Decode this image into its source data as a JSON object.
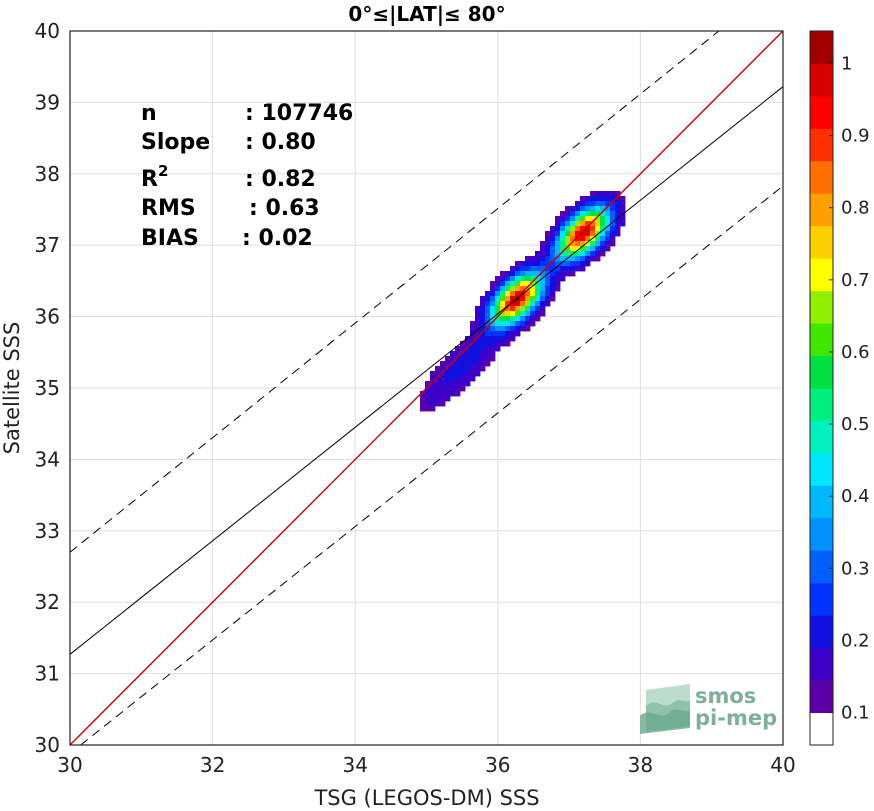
{
  "chart_data": {
    "type": "heatmap",
    "title": "0°≤|LAT|≤ 80°",
    "xlabel": "TSG (LEGOS-DM) SSS",
    "ylabel": "Satellite SSS",
    "xlim": [
      30,
      40
    ],
    "ylim": [
      30,
      40
    ],
    "xticks": [
      "30",
      "32",
      "34",
      "36",
      "38",
      "40"
    ],
    "yticks": [
      "30",
      "31",
      "32",
      "33",
      "34",
      "35",
      "36",
      "37",
      "38",
      "39",
      "40"
    ],
    "grid": true,
    "stats": [
      {
        "label": "n",
        "value": ": 107746"
      },
      {
        "label": "Slope",
        "value": ": 0.80"
      },
      {
        "label": "R",
        "sup": "2",
        "value": ": 0.82"
      },
      {
        "label": "RMS",
        "value": ": 0.63"
      },
      {
        "label": "BIAS",
        "value": ": 0.02"
      }
    ],
    "lines": [
      {
        "role": "one-to-one",
        "color": "#cc0000",
        "style": "solid",
        "points": [
          [
            30,
            30
          ],
          [
            40,
            40
          ]
        ]
      },
      {
        "role": "regression",
        "color": "#000000",
        "style": "solid",
        "points": [
          [
            30,
            31.27
          ],
          [
            40,
            39.22
          ]
        ]
      },
      {
        "role": "upper-bound",
        "color": "#000000",
        "style": "dashed",
        "points": [
          [
            30,
            32.7
          ],
          [
            39.1,
            40
          ]
        ]
      },
      {
        "role": "lower-bound",
        "color": "#000000",
        "style": "dashed",
        "points": [
          [
            30.15,
            30
          ],
          [
            40,
            37.83
          ]
        ]
      }
    ],
    "density_peaks": [
      {
        "x": 36.27,
        "y": 36.25,
        "density": 1.0
      },
      {
        "x": 37.2,
        "y": 37.17,
        "density": 1.0
      }
    ],
    "colorbar": {
      "min": 0.0,
      "max": 1.0,
      "ticks": [
        "0.1",
        "0.2",
        "0.3",
        "0.4",
        "0.5",
        "0.6",
        "0.7",
        "0.8",
        "0.9",
        "1"
      ],
      "levels": 20,
      "colors": [
        "#ffffff",
        "#5a00a8",
        "#3c00c8",
        "#1010e0",
        "#0033ff",
        "#0060ff",
        "#0090ff",
        "#00b8ff",
        "#00e6ff",
        "#00f0c0",
        "#00f080",
        "#00e040",
        "#40e800",
        "#90f000",
        "#ffff00",
        "#ffd000",
        "#ffa000",
        "#ff7000",
        "#ff3000",
        "#ff0000",
        "#d80000",
        "#a00000"
      ]
    }
  },
  "logo": {
    "line1": "smos",
    "line2": "pi-mep"
  }
}
